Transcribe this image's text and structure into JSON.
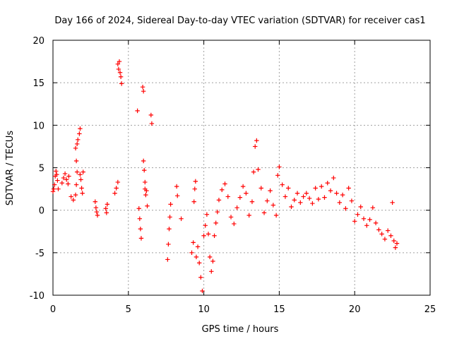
{
  "chart_data": {
    "type": "scatter",
    "title": "Day 166 of 2024, Sidereal Day-to-day VTEC variation (SDTVAR) for receiver cas1",
    "xlabel": "GPS time / hours",
    "ylabel": "SDTVAR / TECUs",
    "xlim": [
      0,
      25
    ],
    "ylim": [
      -10,
      20
    ],
    "xticks": [
      0,
      5,
      10,
      15,
      20,
      25
    ],
    "yticks": [
      -10,
      -5,
      0,
      5,
      10,
      15,
      20
    ],
    "xtick_labels": [
      "0",
      "5",
      "10",
      "15",
      "20",
      "25"
    ],
    "ytick_labels": [
      "-10",
      "-5",
      "0",
      "5",
      "10",
      "15",
      "20"
    ],
    "grid": true,
    "marker": "+",
    "color": "#ff0000",
    "series": [
      {
        "name": "SDTVAR",
        "points": [
          [
            0.0,
            2.2
          ],
          [
            0.05,
            2.5
          ],
          [
            0.1,
            3.0
          ],
          [
            0.15,
            4.0
          ],
          [
            0.2,
            4.6
          ],
          [
            0.25,
            4.2
          ],
          [
            0.3,
            3.5
          ],
          [
            0.35,
            2.5
          ],
          [
            0.6,
            3.2
          ],
          [
            0.7,
            3.8
          ],
          [
            0.8,
            4.3
          ],
          [
            0.9,
            3.6
          ],
          [
            1.0,
            3.1
          ],
          [
            1.05,
            4.0
          ],
          [
            1.2,
            1.6
          ],
          [
            1.35,
            1.2
          ],
          [
            1.5,
            1.8
          ],
          [
            1.55,
            3.0
          ],
          [
            1.6,
            4.5
          ],
          [
            1.55,
            5.8
          ],
          [
            1.5,
            7.3
          ],
          [
            1.6,
            7.8
          ],
          [
            1.65,
            8.3
          ],
          [
            1.75,
            9.0
          ],
          [
            1.8,
            9.6
          ],
          [
            1.8,
            4.2
          ],
          [
            1.85,
            3.6
          ],
          [
            1.9,
            2.6
          ],
          [
            1.95,
            2.0
          ],
          [
            2.0,
            4.5
          ],
          [
            2.8,
            1.0
          ],
          [
            2.85,
            0.3
          ],
          [
            2.9,
            -0.2
          ],
          [
            2.95,
            -0.6
          ],
          [
            3.5,
            0.2
          ],
          [
            3.55,
            -0.3
          ],
          [
            3.6,
            0.7
          ],
          [
            4.1,
            2.0
          ],
          [
            4.2,
            2.6
          ],
          [
            4.3,
            3.3
          ],
          [
            4.3,
            17.2
          ],
          [
            4.35,
            16.6
          ],
          [
            4.4,
            17.5
          ],
          [
            4.45,
            16.2
          ],
          [
            4.5,
            15.7
          ],
          [
            4.55,
            14.9
          ],
          [
            5.6,
            11.7
          ],
          [
            5.7,
            0.2
          ],
          [
            5.75,
            -1.0
          ],
          [
            5.8,
            -2.2
          ],
          [
            5.85,
            -3.3
          ],
          [
            5.95,
            14.5
          ],
          [
            6.0,
            14.0
          ],
          [
            6.0,
            5.8
          ],
          [
            6.05,
            4.7
          ],
          [
            6.1,
            3.3
          ],
          [
            6.1,
            2.5
          ],
          [
            6.15,
            1.8
          ],
          [
            6.2,
            2.3
          ],
          [
            6.25,
            0.5
          ],
          [
            6.5,
            11.2
          ],
          [
            6.55,
            10.2
          ],
          [
            7.6,
            -5.8
          ],
          [
            7.65,
            -4.0
          ],
          [
            7.7,
            -2.2
          ],
          [
            7.75,
            -0.8
          ],
          [
            7.8,
            0.7
          ],
          [
            8.2,
            2.8
          ],
          [
            8.25,
            1.7
          ],
          [
            8.5,
            -1.0
          ],
          [
            9.2,
            -5.0
          ],
          [
            9.3,
            -3.8
          ],
          [
            9.35,
            1.0
          ],
          [
            9.4,
            2.5
          ],
          [
            9.45,
            3.4
          ],
          [
            9.5,
            -5.5
          ],
          [
            9.6,
            -4.3
          ],
          [
            9.7,
            -6.2
          ],
          [
            9.8,
            -7.9
          ],
          [
            9.9,
            -9.5
          ],
          [
            10.0,
            -3.0
          ],
          [
            10.1,
            -1.8
          ],
          [
            10.2,
            -0.5
          ],
          [
            10.3,
            -2.8
          ],
          [
            10.4,
            -5.5
          ],
          [
            10.5,
            -7.2
          ],
          [
            10.6,
            -6.0
          ],
          [
            10.7,
            -3.0
          ],
          [
            10.8,
            -1.5
          ],
          [
            10.9,
            -0.2
          ],
          [
            11.0,
            1.2
          ],
          [
            11.2,
            2.4
          ],
          [
            11.4,
            3.1
          ],
          [
            11.6,
            1.6
          ],
          [
            11.8,
            -0.8
          ],
          [
            12.0,
            -1.6
          ],
          [
            12.2,
            0.3
          ],
          [
            12.4,
            1.5
          ],
          [
            12.6,
            2.8
          ],
          [
            12.8,
            2.0
          ],
          [
            13.0,
            -0.6
          ],
          [
            13.2,
            1.0
          ],
          [
            13.3,
            4.5
          ],
          [
            13.4,
            7.5
          ],
          [
            13.5,
            8.2
          ],
          [
            13.6,
            4.8
          ],
          [
            13.8,
            2.6
          ],
          [
            14.0,
            -0.3
          ],
          [
            14.2,
            1.1
          ],
          [
            14.4,
            2.3
          ],
          [
            14.6,
            0.6
          ],
          [
            14.8,
            -0.6
          ],
          [
            14.9,
            4.1
          ],
          [
            15.0,
            5.1
          ],
          [
            15.2,
            3.0
          ],
          [
            15.4,
            1.6
          ],
          [
            15.6,
            2.6
          ],
          [
            15.8,
            0.4
          ],
          [
            16.0,
            1.2
          ],
          [
            16.2,
            2.0
          ],
          [
            16.4,
            0.9
          ],
          [
            16.6,
            1.6
          ],
          [
            16.8,
            2.0
          ],
          [
            17.0,
            1.4
          ],
          [
            17.2,
            0.8
          ],
          [
            17.4,
            2.6
          ],
          [
            17.6,
            1.3
          ],
          [
            17.8,
            2.8
          ],
          [
            18.0,
            1.5
          ],
          [
            18.2,
            3.2
          ],
          [
            18.4,
            2.3
          ],
          [
            18.6,
            3.8
          ],
          [
            18.8,
            2.0
          ],
          [
            19.0,
            0.9
          ],
          [
            19.2,
            1.8
          ],
          [
            19.4,
            0.2
          ],
          [
            19.6,
            2.6
          ],
          [
            19.8,
            1.1
          ],
          [
            20.0,
            -1.3
          ],
          [
            20.2,
            -0.5
          ],
          [
            20.4,
            0.4
          ],
          [
            20.6,
            -1.0
          ],
          [
            20.8,
            -1.8
          ],
          [
            21.0,
            -1.1
          ],
          [
            21.2,
            0.3
          ],
          [
            21.4,
            -1.5
          ],
          [
            21.6,
            -2.3
          ],
          [
            21.8,
            -2.8
          ],
          [
            22.0,
            -3.4
          ],
          [
            22.2,
            -2.4
          ],
          [
            22.4,
            -3.0
          ],
          [
            22.5,
            0.9
          ],
          [
            22.6,
            -3.6
          ],
          [
            22.7,
            -4.4
          ],
          [
            22.8,
            -3.9
          ]
        ]
      }
    ]
  }
}
